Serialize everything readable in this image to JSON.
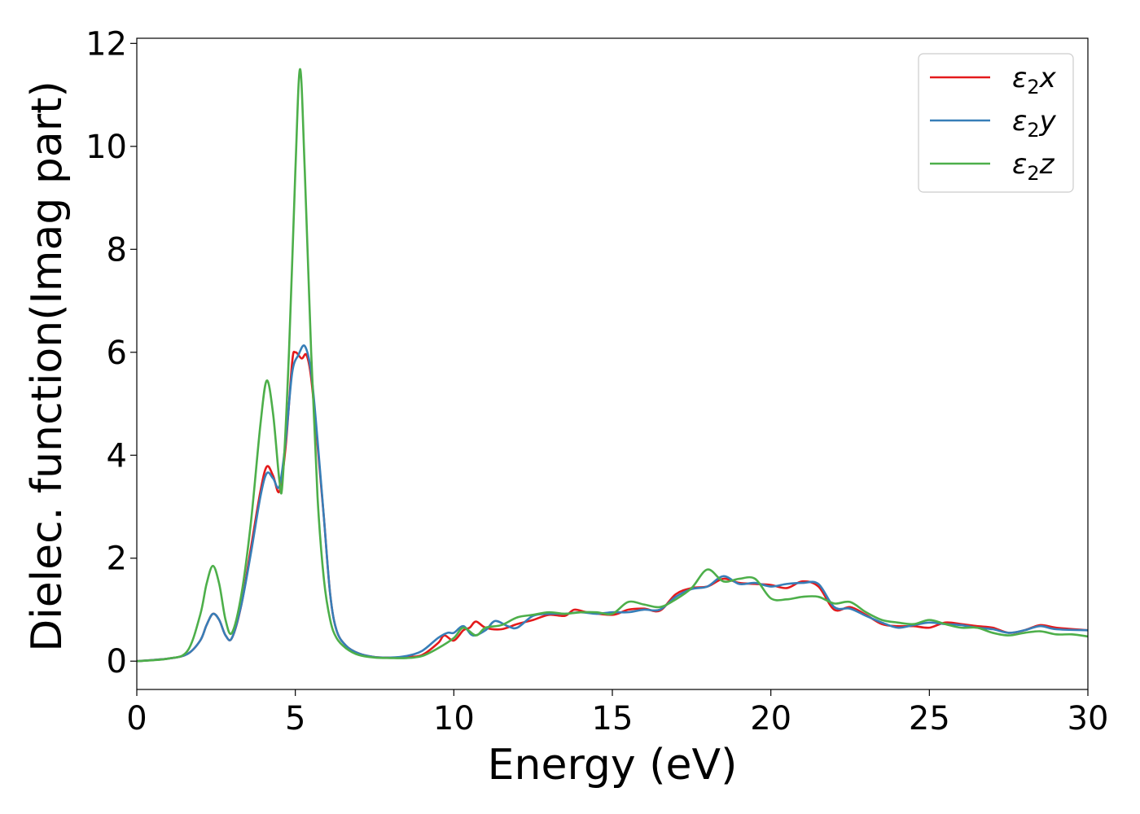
{
  "chart_data": {
    "type": "line",
    "xlabel": "Energy (eV)",
    "ylabel": "Dielec. function(Imag part)",
    "xlim": [
      0,
      30
    ],
    "ylim": [
      -0.55,
      12.1
    ],
    "xticks": [
      0,
      5,
      10,
      15,
      20,
      25,
      30
    ],
    "yticks": [
      0,
      2,
      4,
      6,
      8,
      10,
      12
    ],
    "grid": false,
    "legend_position": "top-right",
    "series": [
      {
        "name": "ε₂x",
        "legend_base": "ε",
        "legend_sub": "2",
        "legend_tail": "x",
        "color": "#e41a1c",
        "points": [
          [
            0,
            0
          ],
          [
            1,
            0.05
          ],
          [
            1.6,
            0.14
          ],
          [
            2,
            0.4
          ],
          [
            2.2,
            0.7
          ],
          [
            2.4,
            0.92
          ],
          [
            2.6,
            0.8
          ],
          [
            2.8,
            0.5
          ],
          [
            3,
            0.45
          ],
          [
            3.3,
            1.1
          ],
          [
            3.6,
            2.2
          ],
          [
            3.9,
            3.3
          ],
          [
            4.1,
            3.78
          ],
          [
            4.3,
            3.6
          ],
          [
            4.5,
            3.3
          ],
          [
            4.7,
            4.2
          ],
          [
            4.9,
            5.8
          ],
          [
            5.0,
            6.0
          ],
          [
            5.2,
            5.88
          ],
          [
            5.35,
            5.95
          ],
          [
            5.5,
            5.5
          ],
          [
            5.7,
            4.2
          ],
          [
            5.9,
            2.8
          ],
          [
            6.1,
            1.3
          ],
          [
            6.3,
            0.6
          ],
          [
            6.6,
            0.3
          ],
          [
            7,
            0.15
          ],
          [
            7.5,
            0.08
          ],
          [
            8,
            0.07
          ],
          [
            8.5,
            0.08
          ],
          [
            9,
            0.12
          ],
          [
            9.5,
            0.35
          ],
          [
            9.7,
            0.5
          ],
          [
            10,
            0.4
          ],
          [
            10.3,
            0.6
          ],
          [
            10.5,
            0.65
          ],
          [
            10.7,
            0.77
          ],
          [
            11,
            0.65
          ],
          [
            11.5,
            0.62
          ],
          [
            12,
            0.72
          ],
          [
            12.5,
            0.8
          ],
          [
            13,
            0.9
          ],
          [
            13.5,
            0.88
          ],
          [
            13.8,
            1.0
          ],
          [
            14.2,
            0.95
          ],
          [
            15,
            0.9
          ],
          [
            15.5,
            1.0
          ],
          [
            16,
            1.02
          ],
          [
            16.5,
            0.98
          ],
          [
            17,
            1.3
          ],
          [
            17.5,
            1.42
          ],
          [
            18,
            1.45
          ],
          [
            18.5,
            1.6
          ],
          [
            19,
            1.52
          ],
          [
            19.5,
            1.5
          ],
          [
            20,
            1.48
          ],
          [
            20.5,
            1.42
          ],
          [
            21,
            1.55
          ],
          [
            21.5,
            1.45
          ],
          [
            22,
            1.0
          ],
          [
            22.5,
            1.05
          ],
          [
            23,
            0.9
          ],
          [
            23.5,
            0.72
          ],
          [
            24,
            0.68
          ],
          [
            24.5,
            0.68
          ],
          [
            25,
            0.65
          ],
          [
            25.5,
            0.75
          ],
          [
            26,
            0.72
          ],
          [
            26.5,
            0.68
          ],
          [
            27,
            0.65
          ],
          [
            27.5,
            0.55
          ],
          [
            28,
            0.6
          ],
          [
            28.5,
            0.7
          ],
          [
            29,
            0.65
          ],
          [
            30,
            0.6
          ]
        ]
      },
      {
        "name": "ε₂y",
        "legend_base": "ε",
        "legend_sub": "2",
        "legend_tail": "y",
        "color": "#377eb8",
        "points": [
          [
            0,
            0
          ],
          [
            1,
            0.05
          ],
          [
            1.6,
            0.14
          ],
          [
            2,
            0.4
          ],
          [
            2.2,
            0.7
          ],
          [
            2.4,
            0.92
          ],
          [
            2.6,
            0.8
          ],
          [
            2.8,
            0.5
          ],
          [
            3,
            0.45
          ],
          [
            3.3,
            1.1
          ],
          [
            3.6,
            2.1
          ],
          [
            3.9,
            3.2
          ],
          [
            4.1,
            3.65
          ],
          [
            4.3,
            3.55
          ],
          [
            4.5,
            3.4
          ],
          [
            4.7,
            4.3
          ],
          [
            4.9,
            5.6
          ],
          [
            5.1,
            5.95
          ],
          [
            5.3,
            6.12
          ],
          [
            5.5,
            5.6
          ],
          [
            5.7,
            4.3
          ],
          [
            5.9,
            2.8
          ],
          [
            6.1,
            1.3
          ],
          [
            6.3,
            0.6
          ],
          [
            6.6,
            0.3
          ],
          [
            7,
            0.15
          ],
          [
            7.5,
            0.08
          ],
          [
            8,
            0.07
          ],
          [
            8.5,
            0.1
          ],
          [
            9,
            0.2
          ],
          [
            9.5,
            0.45
          ],
          [
            9.8,
            0.55
          ],
          [
            10,
            0.55
          ],
          [
            10.3,
            0.68
          ],
          [
            10.6,
            0.5
          ],
          [
            11,
            0.6
          ],
          [
            11.3,
            0.78
          ],
          [
            11.7,
            0.68
          ],
          [
            12,
            0.65
          ],
          [
            12.5,
            0.88
          ],
          [
            13,
            0.92
          ],
          [
            13.5,
            0.92
          ],
          [
            14,
            0.95
          ],
          [
            14.5,
            0.92
          ],
          [
            15,
            0.95
          ],
          [
            15.5,
            0.95
          ],
          [
            16,
            1.0
          ],
          [
            16.5,
            1.0
          ],
          [
            17,
            1.25
          ],
          [
            17.5,
            1.4
          ],
          [
            18,
            1.45
          ],
          [
            18.5,
            1.65
          ],
          [
            19,
            1.5
          ],
          [
            19.5,
            1.52
          ],
          [
            20,
            1.45
          ],
          [
            20.5,
            1.5
          ],
          [
            21,
            1.52
          ],
          [
            21.5,
            1.5
          ],
          [
            22,
            1.05
          ],
          [
            22.5,
            1.02
          ],
          [
            23,
            0.88
          ],
          [
            23.5,
            0.75
          ],
          [
            24,
            0.65
          ],
          [
            24.5,
            0.7
          ],
          [
            25,
            0.75
          ],
          [
            25.5,
            0.72
          ],
          [
            26,
            0.7
          ],
          [
            26.5,
            0.65
          ],
          [
            27,
            0.62
          ],
          [
            27.5,
            0.55
          ],
          [
            28,
            0.6
          ],
          [
            28.5,
            0.68
          ],
          [
            29,
            0.62
          ],
          [
            30,
            0.6
          ]
        ]
      },
      {
        "name": "ε₂z",
        "legend_base": "ε",
        "legend_sub": "2",
        "legend_tail": "z",
        "color": "#4daf4a",
        "points": [
          [
            0,
            0
          ],
          [
            1,
            0.05
          ],
          [
            1.6,
            0.2
          ],
          [
            2,
            0.9
          ],
          [
            2.2,
            1.5
          ],
          [
            2.4,
            1.85
          ],
          [
            2.6,
            1.5
          ],
          [
            2.8,
            0.8
          ],
          [
            3,
            0.55
          ],
          [
            3.3,
            1.3
          ],
          [
            3.6,
            2.7
          ],
          [
            3.9,
            4.6
          ],
          [
            4.1,
            5.45
          ],
          [
            4.3,
            4.8
          ],
          [
            4.5,
            3.5
          ],
          [
            4.6,
            3.5
          ],
          [
            4.8,
            6.0
          ],
          [
            5.0,
            9.5
          ],
          [
            5.15,
            11.5
          ],
          [
            5.3,
            9.5
          ],
          [
            5.5,
            6.0
          ],
          [
            5.7,
            3.2
          ],
          [
            5.9,
            1.6
          ],
          [
            6.1,
            0.8
          ],
          [
            6.3,
            0.45
          ],
          [
            6.6,
            0.25
          ],
          [
            7,
            0.12
          ],
          [
            7.5,
            0.07
          ],
          [
            8,
            0.06
          ],
          [
            8.5,
            0.06
          ],
          [
            9,
            0.1
          ],
          [
            9.5,
            0.25
          ],
          [
            10,
            0.45
          ],
          [
            10.3,
            0.65
          ],
          [
            10.7,
            0.5
          ],
          [
            11,
            0.65
          ],
          [
            11.5,
            0.7
          ],
          [
            12,
            0.85
          ],
          [
            12.5,
            0.9
          ],
          [
            13,
            0.95
          ],
          [
            13.5,
            0.92
          ],
          [
            14,
            0.95
          ],
          [
            14.5,
            0.95
          ],
          [
            15,
            0.92
          ],
          [
            15.5,
            1.15
          ],
          [
            16,
            1.1
          ],
          [
            16.5,
            1.05
          ],
          [
            17,
            1.2
          ],
          [
            17.5,
            1.42
          ],
          [
            18,
            1.78
          ],
          [
            18.5,
            1.55
          ],
          [
            19,
            1.6
          ],
          [
            19.5,
            1.6
          ],
          [
            20,
            1.22
          ],
          [
            20.5,
            1.2
          ],
          [
            21,
            1.25
          ],
          [
            21.5,
            1.25
          ],
          [
            22,
            1.12
          ],
          [
            22.5,
            1.15
          ],
          [
            23,
            0.95
          ],
          [
            23.5,
            0.8
          ],
          [
            24,
            0.75
          ],
          [
            24.5,
            0.72
          ],
          [
            25,
            0.8
          ],
          [
            25.5,
            0.72
          ],
          [
            26,
            0.65
          ],
          [
            26.5,
            0.65
          ],
          [
            27,
            0.55
          ],
          [
            27.5,
            0.5
          ],
          [
            28,
            0.55
          ],
          [
            28.5,
            0.58
          ],
          [
            29,
            0.52
          ],
          [
            29.5,
            0.52
          ],
          [
            30,
            0.48
          ]
        ]
      }
    ]
  }
}
